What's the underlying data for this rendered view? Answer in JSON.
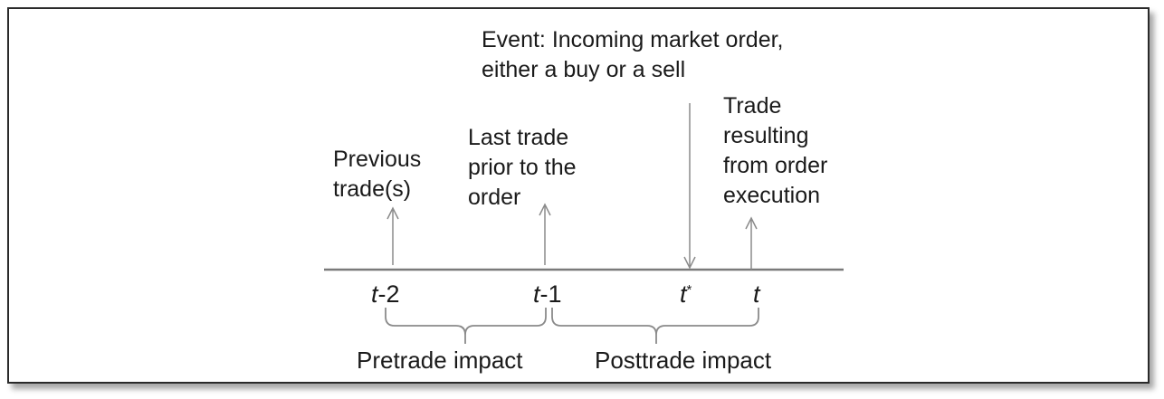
{
  "labels": {
    "event": "Event: Incoming market order,\neither a buy or a sell",
    "previous": "Previous\ntrade(s)",
    "last_trade": "Last trade\nprior to the\norder",
    "resulting": "Trade\nresulting\nfrom order\nexecution"
  },
  "ticks": {
    "t_minus_2": {
      "var": "t",
      "suffix": "-2"
    },
    "t_minus_1": {
      "var": "t",
      "suffix": "-1"
    },
    "t_star": {
      "var": "t",
      "sup": "*"
    },
    "t": {
      "var": "t"
    }
  },
  "impacts": {
    "pretrade": "Pretrade impact",
    "posttrade": "Posttrade impact"
  },
  "colors": {
    "line": "#8a8a8a",
    "axis": "#7a7a7a",
    "text": "#1a1a1a",
    "border": "#2a2a2a"
  }
}
